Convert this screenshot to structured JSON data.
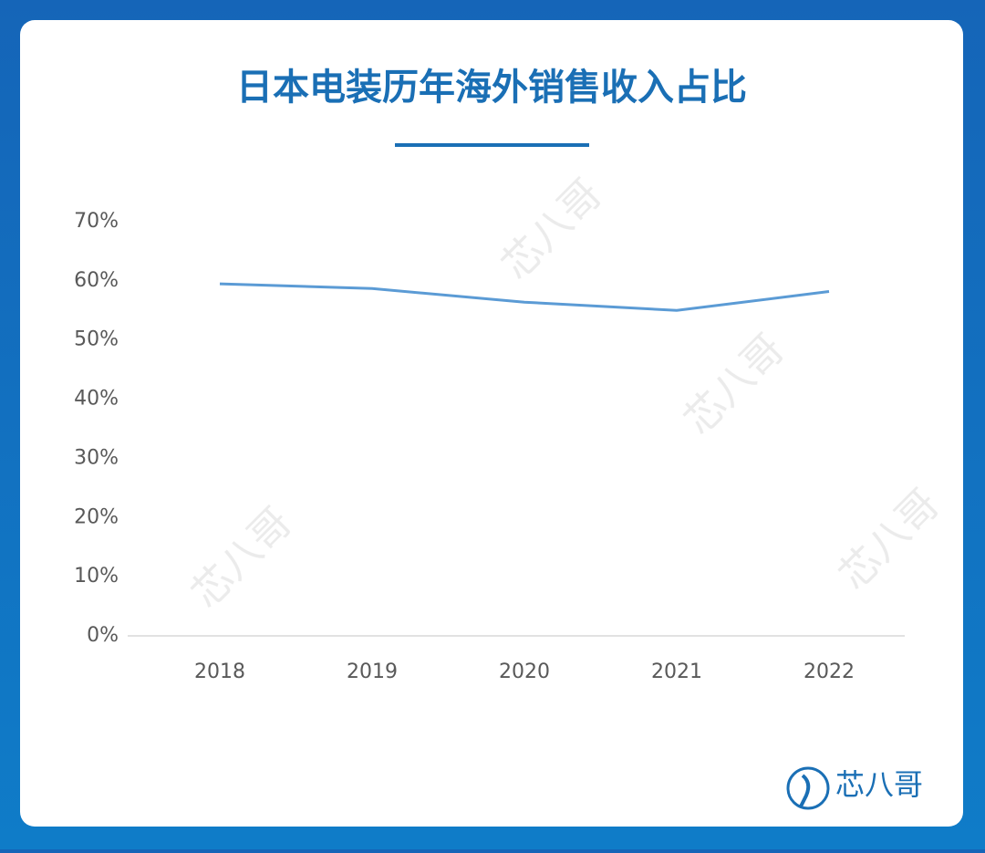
{
  "chart_data": {
    "type": "line",
    "title": "日本电装历年海外销售收入占比",
    "categories": [
      "2018",
      "2019",
      "2020",
      "2021",
      "2022"
    ],
    "series": [
      {
        "name": "海外销售收入占比",
        "color": "#5b9bd5",
        "values": [
          59.5,
          58.7,
          56.4,
          55.0,
          58.2
        ]
      }
    ],
    "ylim": [
      0,
      70
    ],
    "yticks": [
      {
        "value": 0,
        "label": "0%"
      },
      {
        "value": 10,
        "label": "10%"
      },
      {
        "value": 20,
        "label": "20%"
      },
      {
        "value": 30,
        "label": "30%"
      },
      {
        "value": 40,
        "label": "40%"
      },
      {
        "value": 50,
        "label": "50%"
      },
      {
        "value": 60,
        "label": "60%"
      },
      {
        "value": 70,
        "label": "70%"
      }
    ],
    "grid": false,
    "legend": false
  },
  "logo_text": "芯八哥"
}
